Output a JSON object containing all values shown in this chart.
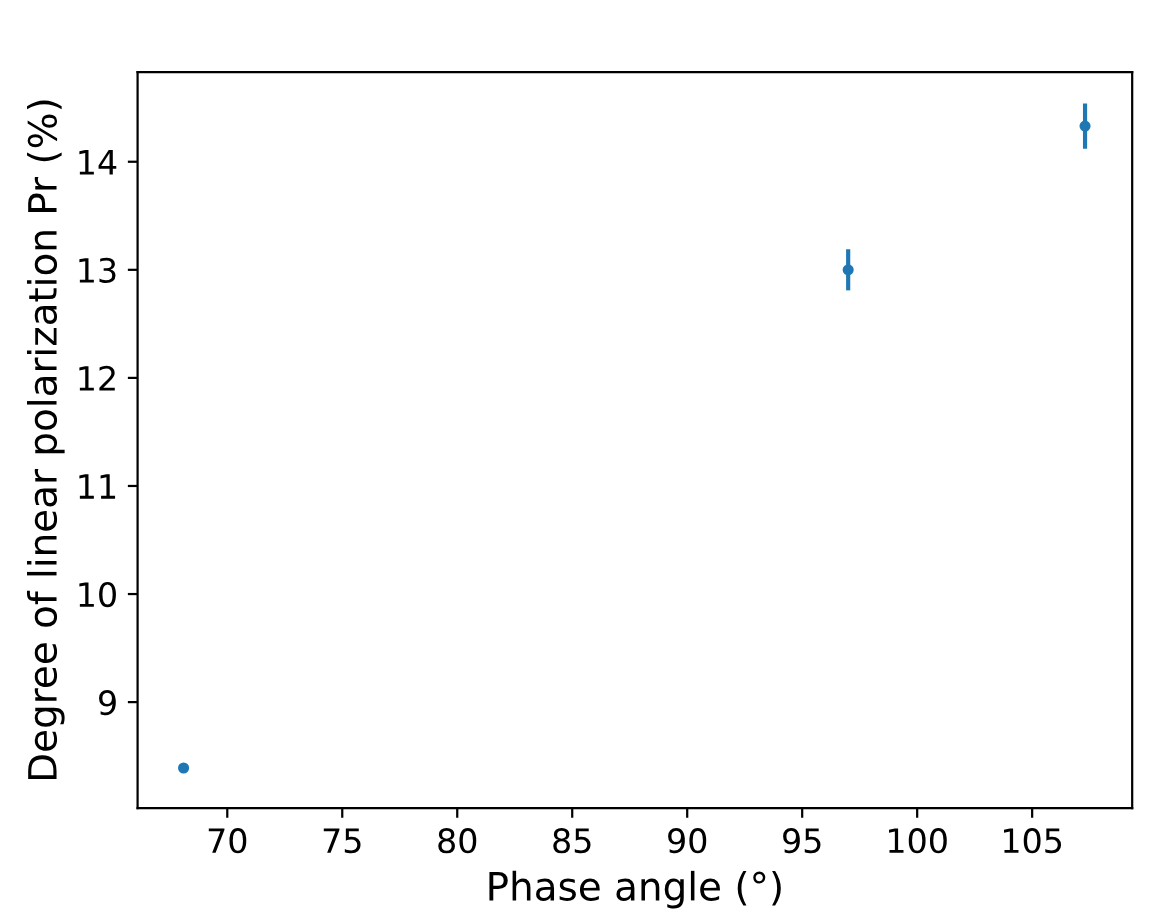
{
  "chart_data": {
    "type": "scatter",
    "xlabel": "Phase angle (°)",
    "ylabel": "Degree of linear polarization Pr (%)",
    "x": [
      68.1,
      97.0,
      107.3
    ],
    "series": [
      {
        "color": "#1f77b4",
        "values": [
          8.39,
          13.0,
          14.33
        ],
        "errors": [
          0.03,
          0.19,
          0.21
        ]
      }
    ],
    "xlim": [
      66.1,
      109.35
    ],
    "xticks": [
      70,
      75,
      80,
      85,
      90,
      95,
      100,
      105
    ],
    "ylim": [
      8.02,
      14.83
    ],
    "yticks": [
      9,
      10,
      11,
      12,
      13,
      14
    ],
    "grid": false,
    "legend": false,
    "marker": "circle"
  }
}
